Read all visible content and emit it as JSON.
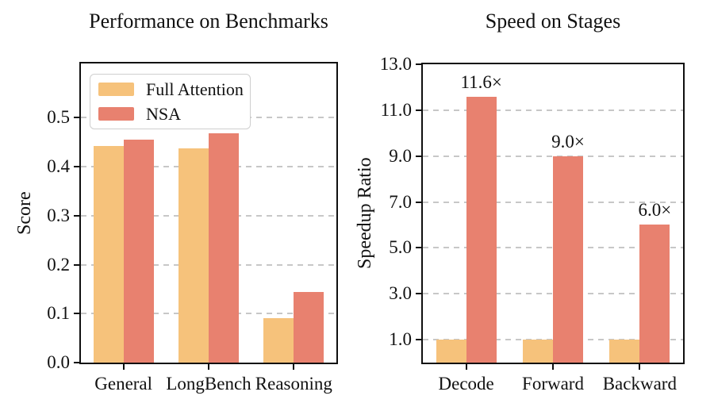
{
  "chart_data": [
    {
      "type": "bar",
      "title": "Performance on Benchmarks",
      "ylabel": "Score",
      "xlabel": "",
      "categories": [
        "General",
        "LongBench",
        "Reasoning"
      ],
      "series": [
        {
          "name": "Full Attention",
          "color": "#F6C27B",
          "values": [
            0.443,
            0.437,
            0.09
          ]
        },
        {
          "name": "NSA",
          "color": "#E8816F",
          "values": [
            0.456,
            0.469,
            0.145
          ]
        }
      ],
      "ylim": [
        0,
        0.611
      ],
      "yticks": [
        0,
        0.1,
        0.2,
        0.3,
        0.4,
        0.5
      ],
      "ytick_labels": [
        "0.0",
        "0.1",
        "0.2",
        "0.3",
        "0.4",
        "0.5"
      ],
      "grid": "horizontal-dashed",
      "legend_position": "upper-left",
      "show_legend": true
    },
    {
      "type": "bar",
      "title": "Speed on Stages",
      "ylabel": "Speedup Ratio",
      "xlabel": "",
      "categories": [
        "Decode",
        "Forward",
        "Backward"
      ],
      "series": [
        {
          "name": "Full Attention",
          "color": "#F6C27B",
          "values": [
            1.0,
            1.0,
            1.0
          ]
        },
        {
          "name": "NSA",
          "color": "#E8816F",
          "values": [
            11.6,
            9.0,
            6.0
          ],
          "bar_labels": [
            "11.6×",
            "9.0×",
            "6.0×"
          ]
        }
      ],
      "ylim": [
        0,
        13
      ],
      "yticks": [
        1,
        3,
        5,
        7,
        9,
        11,
        13
      ],
      "ytick_labels": [
        "1.0",
        "3.0",
        "5.0",
        "7.0",
        "9.0",
        "11.0",
        "13.0"
      ],
      "grid": "horizontal-dashed",
      "show_legend": false
    }
  ],
  "style": {
    "grid_color": "#c7c7c7",
    "spine_color": "#0f0f0f",
    "background": "#ffffff"
  }
}
